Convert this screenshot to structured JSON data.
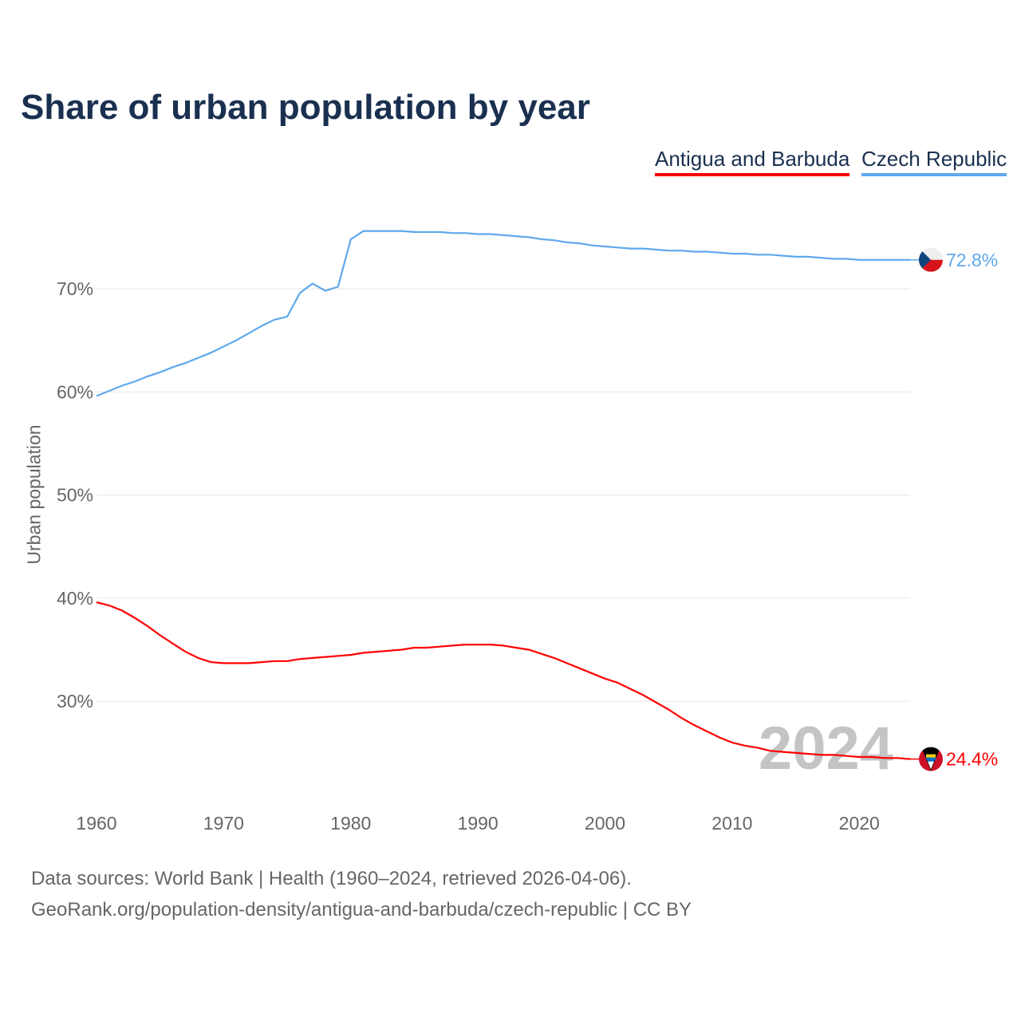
{
  "chart_data": {
    "type": "line",
    "title": "Share of urban population by year",
    "xlabel": "",
    "ylabel": "Urban population",
    "xlim": [
      1960,
      2024
    ],
    "ylim": [
      20.6,
      78
    ],
    "grid": true,
    "legend_position": "top-right",
    "x_ticks": [
      "1960",
      "1970",
      "1980",
      "1990",
      "2000",
      "2010",
      "2020"
    ],
    "y_ticks": [
      {
        "v": 30,
        "label": "30%"
      },
      {
        "v": 40,
        "label": "40%"
      },
      {
        "v": 50,
        "label": "50%"
      },
      {
        "v": 60,
        "label": "60%"
      },
      {
        "v": 70,
        "label": "70%"
      }
    ],
    "year_watermark": "2024",
    "x": [
      1960,
      1961,
      1962,
      1963,
      1964,
      1965,
      1966,
      1967,
      1968,
      1969,
      1970,
      1971,
      1972,
      1973,
      1974,
      1975,
      1976,
      1977,
      1978,
      1979,
      1980,
      1981,
      1982,
      1983,
      1984,
      1985,
      1986,
      1987,
      1988,
      1989,
      1990,
      1991,
      1992,
      1993,
      1994,
      1995,
      1996,
      1997,
      1998,
      1999,
      2000,
      2001,
      2002,
      2003,
      2004,
      2005,
      2006,
      2007,
      2008,
      2009,
      2010,
      2011,
      2012,
      2013,
      2014,
      2015,
      2016,
      2017,
      2018,
      2019,
      2020,
      2021,
      2022,
      2023,
      2024
    ],
    "series": [
      {
        "name": "Antigua and Barbuda",
        "color": "#ff0000",
        "end_label": "24.4%",
        "values": [
          39.6,
          39.3,
          38.8,
          38.1,
          37.3,
          36.4,
          35.6,
          34.8,
          34.2,
          33.8,
          33.7,
          33.7,
          33.7,
          33.8,
          33.9,
          33.9,
          34.1,
          34.2,
          34.3,
          34.4,
          34.5,
          34.7,
          34.8,
          34.9,
          35.0,
          35.2,
          35.2,
          35.3,
          35.4,
          35.5,
          35.5,
          35.5,
          35.4,
          35.2,
          35.0,
          34.6,
          34.2,
          33.7,
          33.2,
          32.7,
          32.2,
          31.8,
          31.2,
          30.6,
          29.9,
          29.2,
          28.4,
          27.7,
          27.1,
          26.5,
          26.0,
          25.7,
          25.5,
          25.2,
          25.1,
          25.0,
          24.9,
          24.8,
          24.8,
          24.7,
          24.6,
          24.6,
          24.5,
          24.5,
          24.4
        ]
      },
      {
        "name": "Czech Republic",
        "color": "#5fa8ec",
        "end_label": "72.8%",
        "values": [
          59.6,
          60.1,
          60.6,
          61.0,
          61.5,
          61.9,
          62.4,
          62.8,
          63.3,
          63.8,
          64.4,
          65.0,
          65.7,
          66.4,
          67.0,
          67.3,
          69.6,
          70.5,
          69.8,
          70.2,
          74.8,
          75.6,
          75.6,
          75.6,
          75.6,
          75.5,
          75.5,
          75.5,
          75.4,
          75.4,
          75.3,
          75.3,
          75.2,
          75.1,
          75.0,
          74.8,
          74.7,
          74.5,
          74.4,
          74.2,
          74.1,
          74.0,
          73.9,
          73.9,
          73.8,
          73.7,
          73.7,
          73.6,
          73.6,
          73.5,
          73.4,
          73.4,
          73.3,
          73.3,
          73.2,
          73.1,
          73.1,
          73.0,
          72.9,
          72.9,
          72.8,
          72.8,
          72.8,
          72.8,
          72.8
        ]
      }
    ]
  },
  "source": {
    "line1": "Data sources: World Bank | Health (1960–2024, retrieved 2026-04-06).",
    "line2": "GeoRank.org/population-density/antigua-and-barbuda/czech-republic | CC BY"
  }
}
